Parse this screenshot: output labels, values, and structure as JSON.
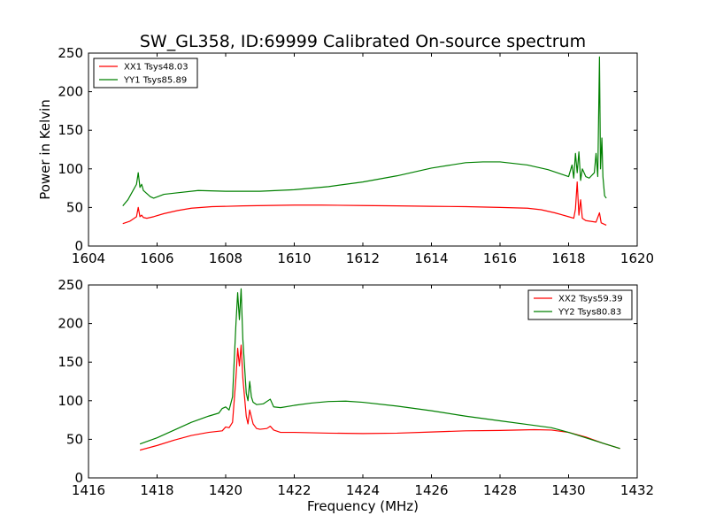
{
  "title": "SW_GL358, ID:69999 Calibrated On-source spectrum",
  "chart_data": [
    {
      "type": "line",
      "ylabel": "Power in Kelvin",
      "xlabel": "",
      "xlim": [
        1604,
        1620
      ],
      "ylim": [
        0,
        250
      ],
      "xticks": [
        1604,
        1606,
        1608,
        1610,
        1612,
        1614,
        1616,
        1618,
        1620
      ],
      "yticks": [
        0,
        50,
        100,
        150,
        200,
        250
      ],
      "grid": false,
      "legend_position": "top-left",
      "series": [
        {
          "name": "XX1 Tsys48.03",
          "color": "#ff0000",
          "x": [
            1605.0,
            1605.2,
            1605.4,
            1605.45,
            1605.5,
            1605.55,
            1605.6,
            1605.7,
            1605.9,
            1606.2,
            1606.6,
            1607.0,
            1607.6,
            1608.5,
            1610.0,
            1610.8,
            1612.0,
            1613.0,
            1614.0,
            1615.0,
            1616.0,
            1616.8,
            1617.2,
            1617.6,
            1618.0,
            1618.15,
            1618.2,
            1618.25,
            1618.3,
            1618.35,
            1618.4,
            1618.5,
            1618.8,
            1618.9,
            1618.95,
            1619.0,
            1619.1
          ],
          "y": [
            29,
            32,
            38,
            50,
            38,
            40,
            37,
            36,
            38,
            42,
            46,
            49,
            51,
            52,
            53,
            53,
            52.5,
            52,
            51.5,
            51,
            50,
            49,
            47,
            43,
            38,
            36,
            48,
            83,
            40,
            60,
            36,
            33,
            31,
            43,
            30,
            29,
            27
          ]
        },
        {
          "name": "YY1 Tsys85.89",
          "color": "#008000",
          "x": [
            1605.0,
            1605.15,
            1605.3,
            1605.4,
            1605.45,
            1605.5,
            1605.55,
            1605.6,
            1605.8,
            1605.9,
            1606.2,
            1606.6,
            1607.2,
            1608.0,
            1609.0,
            1610.0,
            1611.0,
            1612.0,
            1613.0,
            1614.0,
            1615.0,
            1615.5,
            1616.0,
            1616.8,
            1617.4,
            1617.8,
            1618.0,
            1618.1,
            1618.15,
            1618.2,
            1618.25,
            1618.3,
            1618.35,
            1618.4,
            1618.5,
            1618.6,
            1618.75,
            1618.8,
            1618.85,
            1618.9,
            1618.93,
            1618.97,
            1619.0,
            1619.05,
            1619.1
          ],
          "y": [
            52,
            60,
            72,
            80,
            95,
            76,
            80,
            72,
            64,
            62,
            67,
            69,
            72,
            71,
            71,
            73,
            77,
            83,
            91,
            101,
            108,
            109,
            109,
            105,
            99,
            93,
            90,
            105,
            88,
            120,
            95,
            122,
            85,
            100,
            90,
            88,
            95,
            120,
            90,
            245,
            100,
            140,
            90,
            65,
            62
          ]
        }
      ]
    },
    {
      "type": "line",
      "ylabel": "",
      "xlabel": "Frequency (MHz)",
      "xlim": [
        1416,
        1432
      ],
      "ylim": [
        0,
        250
      ],
      "xticks": [
        1416,
        1418,
        1420,
        1422,
        1424,
        1426,
        1428,
        1430,
        1432
      ],
      "yticks": [
        0,
        50,
        100,
        150,
        200,
        250
      ],
      "grid": false,
      "legend_position": "top-right",
      "series": [
        {
          "name": "XX2 Tsys59.39",
          "color": "#ff0000",
          "x": [
            1417.5,
            1418.0,
            1418.5,
            1419.0,
            1419.5,
            1419.9,
            1420.0,
            1420.1,
            1420.2,
            1420.3,
            1420.35,
            1420.4,
            1420.45,
            1420.5,
            1420.6,
            1420.65,
            1420.7,
            1420.8,
            1420.9,
            1421.0,
            1421.2,
            1421.3,
            1421.4,
            1421.6,
            1422.0,
            1423.0,
            1424.0,
            1425.0,
            1426.0,
            1427.0,
            1428.0,
            1429.0,
            1429.5,
            1430.0,
            1430.5,
            1431.0,
            1431.5
          ],
          "y": [
            36,
            42,
            49,
            55,
            59,
            61,
            66,
            65,
            72,
            130,
            168,
            145,
            172,
            130,
            80,
            70,
            88,
            70,
            64,
            63,
            64,
            67,
            62,
            59,
            59,
            58,
            57.5,
            58,
            59.5,
            61,
            61.5,
            62.5,
            62,
            59,
            53,
            45,
            38
          ]
        },
        {
          "name": "YY2 Tsys80.83",
          "color": "#008000",
          "x": [
            1417.5,
            1418.0,
            1418.5,
            1419.0,
            1419.5,
            1419.8,
            1419.9,
            1420.0,
            1420.1,
            1420.2,
            1420.3,
            1420.35,
            1420.4,
            1420.45,
            1420.5,
            1420.6,
            1420.65,
            1420.7,
            1420.75,
            1420.8,
            1420.9,
            1421.1,
            1421.3,
            1421.4,
            1421.6,
            1422.0,
            1422.5,
            1423.0,
            1423.5,
            1424.0,
            1425.0,
            1426.0,
            1427.0,
            1428.0,
            1429.0,
            1429.5,
            1430.0,
            1430.5,
            1431.0,
            1431.5
          ],
          "y": [
            44,
            52,
            62,
            72,
            80,
            84,
            90,
            92,
            88,
            105,
            200,
            240,
            205,
            245,
            180,
            110,
            100,
            125,
            105,
            98,
            95,
            96,
            102,
            92,
            91,
            94,
            97,
            99,
            99.5,
            98,
            93,
            87,
            80,
            74,
            68,
            65,
            59,
            52,
            45,
            38
          ]
        }
      ]
    }
  ]
}
